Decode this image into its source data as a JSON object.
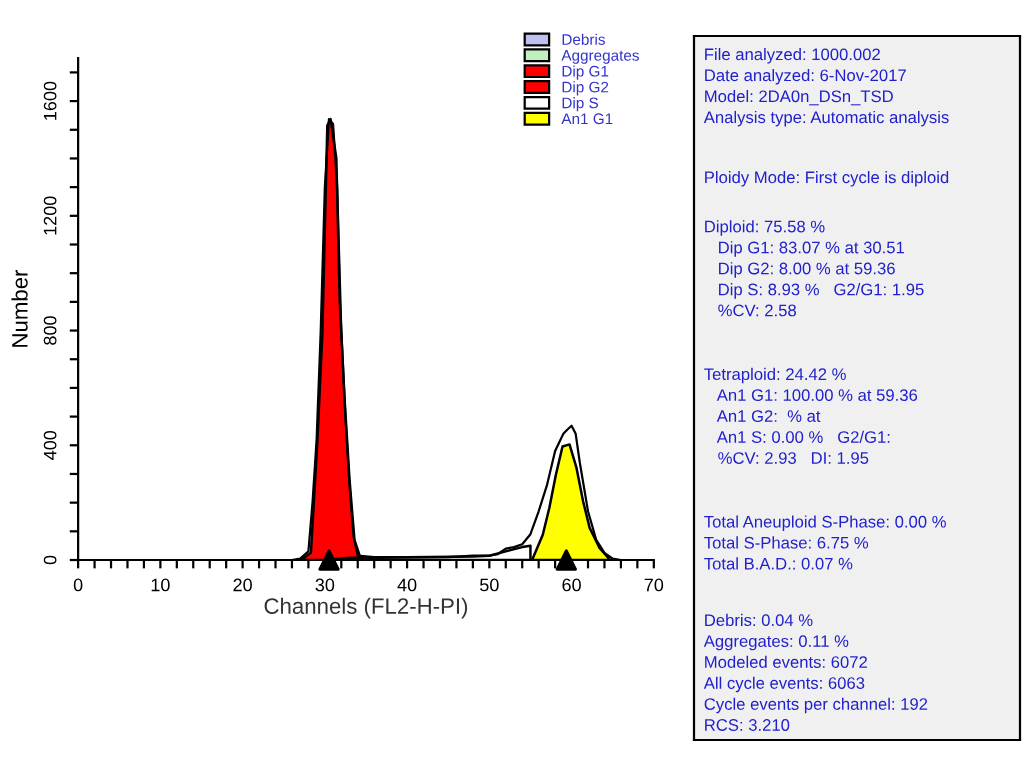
{
  "chart_data": {
    "type": "area",
    "xlabel": "Channels (FL2-H-PI)",
    "ylabel": "Number",
    "xlim": [
      0,
      70
    ],
    "ylim": [
      0,
      1750
    ],
    "xticks": [
      0,
      {
        "value": 2,
        "label": null
      },
      {
        "value": 4,
        "label": null
      },
      {
        "value": 6,
        "label": null
      },
      {
        "value": 8,
        "label": null
      },
      10,
      {
        "value": 12,
        "label": null
      },
      {
        "value": 14,
        "label": null
      },
      {
        "value": 16,
        "label": null
      },
      {
        "value": 18,
        "label": null
      },
      20,
      {
        "value": 22,
        "label": null
      },
      {
        "value": 24,
        "label": null
      },
      {
        "value": 26,
        "label": null
      },
      {
        "value": 28,
        "label": null
      },
      30,
      {
        "value": 32,
        "label": null
      },
      {
        "value": 34,
        "label": null
      },
      {
        "value": 36,
        "label": null
      },
      {
        "value": 38,
        "label": null
      },
      40,
      {
        "value": 42,
        "label": null
      },
      {
        "value": 44,
        "label": null
      },
      {
        "value": 46,
        "label": null
      },
      {
        "value": 48,
        "label": null
      },
      50,
      {
        "value": 52,
        "label": null
      },
      {
        "value": 54,
        "label": null
      },
      {
        "value": 56,
        "label": null
      },
      {
        "value": 58,
        "label": null
      },
      60,
      {
        "value": 62,
        "label": null
      },
      {
        "value": 64,
        "label": null
      },
      {
        "value": 66,
        "label": null
      },
      {
        "value": 68,
        "label": null
      },
      70
    ],
    "yticks": [
      0,
      {
        "value": 100,
        "label": null
      },
      {
        "value": 200,
        "label": null
      },
      {
        "value": 300,
        "label": null
      },
      400,
      {
        "value": 500,
        "label": null
      },
      {
        "value": 600,
        "label": null
      },
      {
        "value": 700,
        "label": null
      },
      800,
      {
        "value": 900,
        "label": null
      },
      {
        "value": 1000,
        "label": null
      },
      {
        "value": 1100,
        "label": null
      },
      1200,
      {
        "value": 1300,
        "label": null
      },
      {
        "value": 1400,
        "label": null
      },
      {
        "value": 1500,
        "label": null
      },
      1600,
      {
        "value": 1700,
        "label": null
      }
    ],
    "legend": "top right",
    "grid": false,
    "series": [
      {
        "name": "Debris",
        "color": "#c0c0f0"
      },
      {
        "name": "Aggregates",
        "color": "#c0f0c0"
      },
      {
        "name": "Dip G1",
        "color": "#ff0000",
        "x": [
          27.1,
          28.3,
          28.7,
          29.1,
          29.7,
          30.3,
          30.7,
          31.4,
          31.8,
          32.4,
          33.0,
          33.6,
          34.4
        ],
        "values": [
          0,
          25,
          220,
          420,
          790,
          1515,
          1537,
          1400,
          910,
          560,
          280,
          70,
          0
        ]
      },
      {
        "name": "Dip G2",
        "color": "#ff0000"
      },
      {
        "name": "Dip S",
        "color": "#ffffff",
        "x": [
          30,
          33,
          40,
          48,
          50,
          52,
          54,
          55
        ],
        "values": [
          0,
          8,
          10,
          12,
          15,
          30,
          45,
          50
        ]
      },
      {
        "name": "An1 G1",
        "color": "#ffff00",
        "x": [
          55.2,
          56.5,
          57.3,
          58.1,
          58.9,
          59.75,
          60.6,
          61.4,
          62.2,
          63.4,
          64.7
        ],
        "values": [
          0,
          88,
          182,
          298,
          396,
          403,
          321,
          205,
          112,
          42,
          0
        ]
      },
      {
        "type": "line",
        "color": "#000000",
        "x": [
          26,
          27,
          28,
          28.5,
          29,
          29.5,
          30,
          30.5,
          31,
          31.5,
          32,
          32.5,
          33,
          33.5,
          34,
          36,
          40,
          45,
          48,
          50,
          51,
          52,
          53,
          54,
          55,
          56,
          57,
          58,
          59,
          59.5,
          60,
          60.5,
          61,
          62,
          63,
          64,
          65,
          66,
          70
        ],
        "values": [
          0,
          5,
          30,
          200,
          420,
          800,
          1300,
          1537,
          1520,
          1300,
          800,
          500,
          260,
          80,
          15,
          10,
          10,
          10,
          15,
          15,
          20,
          40,
          45,
          55,
          90,
          170,
          260,
          380,
          440,
          455,
          468,
          440,
          340,
          170,
          70,
          25,
          5,
          0,
          0
        ]
      },
      {
        "type": "scatter",
        "color": "#000000",
        "marker": "triangle",
        "x": [
          30.51,
          59.36
        ],
        "values": [
          0,
          0
        ]
      }
    ],
    "annotations": [
      "File analyzed: 1000.002\nDate analyzed: 6-Nov-2017\nModel: 2DA0n_DSn_TSD\nAnalysis type: Automatic analysis",
      "Ploidy Mode: First cycle is diploid",
      "Diploid: 75.58 %\n   Dip G1: 83.07 % at 30.51\n   Dip G2: 8.00 % at 59.36\n   Dip S: 8.93 %   G2/G1: 1.95\n   %CV: 2.58",
      "Tetraploid: 24.42 %\n   An1 G1: 100.00 % at 59.36\n   An1 G2:  % at\n   An1 S: 0.00 %   G2/G1:\n   %CV: 2.93   DI: 1.95",
      "Total Aneuploid S-Phase: 0.00 %\nTotal S-Phase: 6.75 %\nTotal B.A.D.: 0.07 %",
      "Debris: 0.04 %\nAggregates: 0.11 %\nModeled events: 6072\nAll cycle events: 6063\nCycle events per channel: 192\nRCS: 3.210"
    ]
  }
}
